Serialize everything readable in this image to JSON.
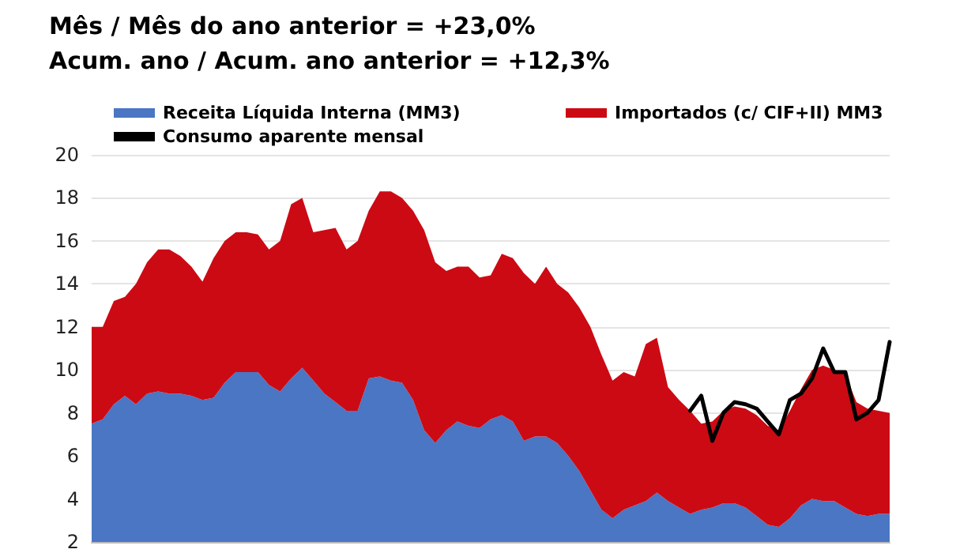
{
  "chart_data": {
    "type": "area",
    "title": "Mês / Mês do ano anterior = +23,0%",
    "subtitle": "Acum. ano / Acum. ano anterior = +12,3%",
    "categories": [
      null,
      null,
      null,
      null,
      null,
      null,
      null,
      null,
      null,
      null,
      null,
      null,
      null,
      null,
      null,
      null,
      null,
      null,
      null,
      null,
      null,
      null,
      null,
      null,
      null,
      null,
      null,
      null,
      null,
      null,
      null,
      null,
      null,
      null,
      null,
      null,
      null,
      null,
      null,
      null,
      null,
      null,
      null,
      null,
      null,
      null,
      null,
      null,
      null,
      null,
      null,
      null,
      null,
      null,
      null,
      null,
      null,
      null,
      null,
      null,
      null,
      null,
      null,
      null,
      null,
      null,
      null,
      null,
      null,
      null,
      null,
      null,
      null
    ],
    "stacked": true,
    "series": [
      {
        "name": "Receita Líquida Interna (MM3)",
        "color": "#4a76c4",
        "values": [
          7.5,
          7.7,
          8.4,
          8.8,
          8.4,
          8.9,
          9,
          8.9,
          8.9,
          8.8,
          8.6,
          8.7,
          9.4,
          9.9,
          9.9,
          9.9,
          9.3,
          9,
          9.6,
          10.1,
          9.5,
          8.9,
          8.5,
          8.1,
          8.1,
          9.6,
          9.7,
          9.5,
          9.4,
          8.6,
          7.2,
          6.6,
          7.2,
          7.6,
          7.4,
          7.3,
          7.7,
          7.9,
          7.6,
          6.7,
          6.9,
          6.9,
          6.6,
          6,
          5.3,
          4.4,
          3.5,
          3.1,
          3.5,
          3.7,
          3.9,
          4.3,
          3.9,
          3.6,
          3.3,
          3.5,
          3.6,
          3.8,
          3.8,
          3.6,
          3.2,
          2.8,
          2.7,
          3.1,
          3.7,
          4,
          3.9,
          3.9,
          3.6,
          3.3,
          3.2,
          3.3,
          3.3
        ]
      },
      {
        "name": "Importados (c/ CIF+II) MM3",
        "color": "#cc0a14",
        "values": [
          4.5,
          4.3,
          4.8,
          4.6,
          5.6,
          6.1,
          6.6,
          6.7,
          6.4,
          6,
          5.5,
          6.5,
          6.6,
          6.5,
          6.5,
          6.4,
          6.3,
          7,
          8.1,
          7.9,
          6.9,
          7.6,
          8.1,
          7.5,
          7.9,
          7.8,
          8.6,
          8.8,
          8.6,
          8.8,
          9.3,
          8.4,
          7.4,
          7.2,
          7.4,
          7,
          6.7,
          7.5,
          7.6,
          7.8,
          7.1,
          7.9,
          7.4,
          7.6,
          7.6,
          7.6,
          7.2,
          6.4,
          6.4,
          6,
          7.3,
          7.2,
          5.3,
          5,
          4.8,
          4,
          4,
          4.3,
          4.5,
          4.6,
          4.7,
          4.6,
          4.5,
          5,
          5.4,
          6,
          6.3,
          6.1,
          6.2,
          5.2,
          5,
          4.8,
          4.7
        ]
      },
      {
        "name": "Consumo aparente mensal",
        "type": "line",
        "color": "#000000",
        "values": [
          null,
          null,
          null,
          null,
          null,
          null,
          null,
          null,
          null,
          null,
          null,
          null,
          null,
          null,
          null,
          null,
          null,
          null,
          null,
          null,
          null,
          null,
          null,
          null,
          null,
          null,
          null,
          null,
          null,
          null,
          null,
          null,
          null,
          null,
          null,
          null,
          null,
          null,
          null,
          null,
          null,
          null,
          null,
          null,
          null,
          null,
          null,
          null,
          null,
          null,
          null,
          null,
          null,
          null,
          8.1,
          8.8,
          6.7,
          8,
          8.5,
          8.4,
          8.2,
          7.6,
          7,
          8.6,
          8.9,
          9.6,
          11,
          9.9,
          9.9,
          7.7,
          8,
          8.6,
          11.3
        ]
      }
    ],
    "ylim": [
      2,
      20
    ],
    "yticks": [
      2,
      4,
      6,
      8,
      10,
      12,
      14,
      16,
      18,
      20
    ],
    "grid": "y",
    "legend": "top",
    "tick_labels": "y",
    "line_style": "solid"
  }
}
